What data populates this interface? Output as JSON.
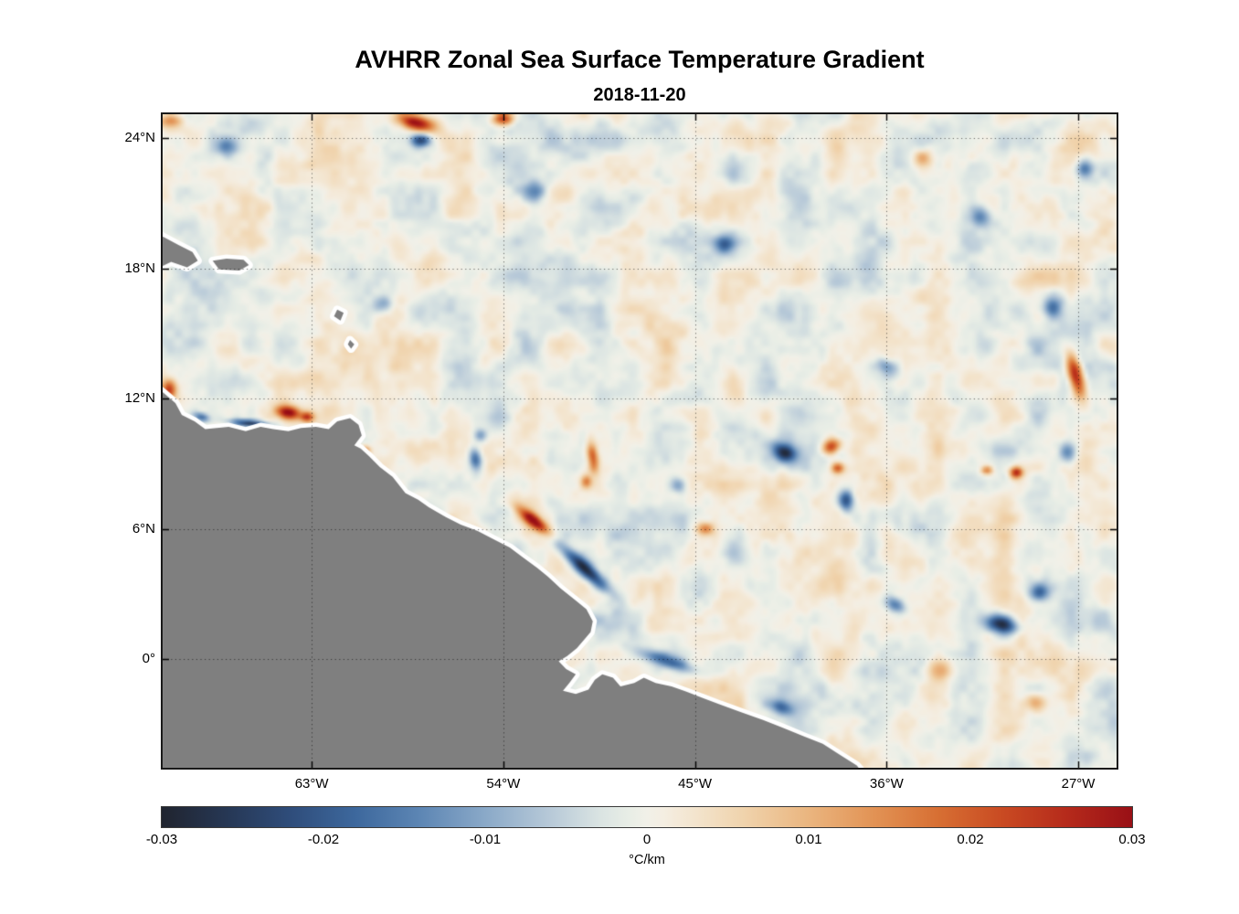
{
  "style": {
    "background": "#ffffff",
    "land_color": "#7f7f7f",
    "coast_halo": "#ffffff",
    "grid_color": "rgba(0,0,0,0.55)",
    "axis_color": "#000000",
    "text_color": "#000000",
    "box_color": "#1a1a1a"
  },
  "chart_data": {
    "type": "heatmap",
    "title": "AVHRR Zonal Sea Surface Temperature Gradient",
    "subtitle": "2018-11-20",
    "date": "2018-11-20",
    "xlabel": "",
    "ylabel": "",
    "grid": {
      "show": true,
      "line_style": "dotted"
    },
    "legend": "none",
    "extent": {
      "lon": [
        -70.0,
        -25.2
      ],
      "lat": [
        -5.0,
        25.1
      ]
    },
    "x_ticks": [
      {
        "label": "63°W",
        "value": -63
      },
      {
        "label": "54°W",
        "value": -54
      },
      {
        "label": "45°W",
        "value": -45
      },
      {
        "label": "36°W",
        "value": -36
      },
      {
        "label": "27°W",
        "value": -27
      }
    ],
    "y_ticks": [
      {
        "label": "24°N",
        "value": 24
      },
      {
        "label": "18°N",
        "value": 18
      },
      {
        "label": "12°N",
        "value": 12
      },
      {
        "label": "6°N",
        "value": 6
      },
      {
        "label": "0°",
        "value": 0
      }
    ],
    "colorbar": {
      "units": "°C/km",
      "min": -0.03,
      "max": 0.03,
      "orientation": "horizontal",
      "ticks": [
        {
          "label": "-0.03",
          "value": -0.03
        },
        {
          "label": "-0.02",
          "value": -0.02
        },
        {
          "label": "-0.01",
          "value": -0.01
        },
        {
          "label": "0",
          "value": 0
        },
        {
          "label": "0.01",
          "value": 0.01
        },
        {
          "label": "0.02",
          "value": 0.02
        },
        {
          "label": "0.03",
          "value": 0.03
        }
      ],
      "stops": [
        {
          "v": -0.03,
          "c": "#20242f"
        },
        {
          "v": -0.026,
          "c": "#263754"
        },
        {
          "v": -0.022,
          "c": "#2f4d7b"
        },
        {
          "v": -0.018,
          "c": "#3d689d"
        },
        {
          "v": -0.014,
          "c": "#5d86b4"
        },
        {
          "v": -0.01,
          "c": "#8aa9c8"
        },
        {
          "v": -0.006,
          "c": "#b7c9d8"
        },
        {
          "v": -0.003,
          "c": "#d9e3e2"
        },
        {
          "v": -0.001,
          "c": "#e9eee6"
        },
        {
          "v": 0.0,
          "c": "#f1f0e8"
        },
        {
          "v": 0.001,
          "c": "#f4eee2"
        },
        {
          "v": 0.003,
          "c": "#f3e4cd"
        },
        {
          "v": 0.006,
          "c": "#f0d3ac"
        },
        {
          "v": 0.01,
          "c": "#eab57f"
        },
        {
          "v": 0.014,
          "c": "#e29355"
        },
        {
          "v": 0.018,
          "c": "#d76f33"
        },
        {
          "v": 0.022,
          "c": "#c94a22"
        },
        {
          "v": 0.026,
          "c": "#b52a1b"
        },
        {
          "v": 0.03,
          "c": "#991016"
        }
      ]
    },
    "field_description": "Mostly near-zero (pale) zonal SST gradient with scattered positive (orange/red) and negative (blue) mesoscale anomalies over the tropical western Atlantic; gray land mask of northeastern South America and Caribbean islands.",
    "background_noise": {
      "seed": 11,
      "wavelength_deg": 1.6,
      "amplitude": 0.0085,
      "octaves": 3
    },
    "features": [
      {
        "lon": -58.1,
        "lat": 24.7,
        "v": 0.03,
        "rx": 0.85,
        "ry": 0.35,
        "rot": -15
      },
      {
        "lon": -57.9,
        "lat": 23.9,
        "v": -0.024,
        "rx": 0.45,
        "ry": 0.3,
        "rot": 0
      },
      {
        "lon": -54.0,
        "lat": 24.9,
        "v": 0.026,
        "rx": 0.5,
        "ry": 0.3,
        "rot": 0
      },
      {
        "lon": -69.6,
        "lat": 24.8,
        "v": 0.014,
        "rx": 0.55,
        "ry": 0.3,
        "rot": 0
      },
      {
        "lon": -67.0,
        "lat": 23.6,
        "v": -0.012,
        "rx": 0.45,
        "ry": 0.35,
        "rot": 0
      },
      {
        "lon": -69.7,
        "lat": 12.4,
        "v": 0.022,
        "rx": 0.35,
        "ry": 0.45,
        "rot": 0
      },
      {
        "lon": -64.1,
        "lat": 11.35,
        "v": 0.03,
        "rx": 0.55,
        "ry": 0.3,
        "rot": -10
      },
      {
        "lon": -63.2,
        "lat": 11.15,
        "v": 0.022,
        "rx": 0.3,
        "ry": 0.22,
        "rot": 0
      },
      {
        "lon": -65.9,
        "lat": 10.85,
        "v": -0.026,
        "rx": 0.9,
        "ry": 0.18,
        "rot": -5
      },
      {
        "lon": -68.2,
        "lat": 11.15,
        "v": -0.015,
        "rx": 0.4,
        "ry": 0.2,
        "rot": -15
      },
      {
        "lon": -60.5,
        "lat": 9.6,
        "v": 0.018,
        "rx": 0.28,
        "ry": 0.24,
        "rot": 0
      },
      {
        "lon": -55.3,
        "lat": 9.2,
        "v": -0.019,
        "rx": 0.3,
        "ry": 0.55,
        "rot": 10
      },
      {
        "lon": -55.1,
        "lat": 10.3,
        "v": -0.012,
        "rx": 0.3,
        "ry": 0.3,
        "rot": 0
      },
      {
        "lon": -49.8,
        "lat": 9.3,
        "v": 0.021,
        "rx": 0.25,
        "ry": 0.7,
        "rot": 8
      },
      {
        "lon": -50.1,
        "lat": 8.2,
        "v": 0.015,
        "rx": 0.25,
        "ry": 0.3,
        "rot": 0
      },
      {
        "lon": -52.6,
        "lat": 6.4,
        "v": 0.03,
        "rx": 0.85,
        "ry": 0.28,
        "rot": -38
      },
      {
        "lon": -50.2,
        "lat": 4.2,
        "v": -0.028,
        "rx": 1.5,
        "ry": 0.33,
        "rot": -42
      },
      {
        "lon": -46.3,
        "lat": -0.1,
        "v": -0.016,
        "rx": 1.3,
        "ry": 0.3,
        "rot": -18
      },
      {
        "lon": -40.8,
        "lat": 9.5,
        "v": -0.026,
        "rx": 0.55,
        "ry": 0.4,
        "rot": -30
      },
      {
        "lon": -38.6,
        "lat": 9.8,
        "v": 0.027,
        "rx": 0.45,
        "ry": 0.35,
        "rot": 20
      },
      {
        "lon": -38.3,
        "lat": 8.8,
        "v": 0.02,
        "rx": 0.3,
        "ry": 0.25,
        "rot": 0
      },
      {
        "lon": -37.9,
        "lat": 7.3,
        "v": -0.022,
        "rx": 0.35,
        "ry": 0.45,
        "rot": 0
      },
      {
        "lon": -27.1,
        "lat": 13.0,
        "v": 0.031,
        "rx": 0.35,
        "ry": 1.0,
        "rot": 15
      },
      {
        "lon": -29.9,
        "lat": 8.6,
        "v": 0.026,
        "rx": 0.3,
        "ry": 0.25,
        "rot": 0
      },
      {
        "lon": -31.3,
        "lat": 8.7,
        "v": 0.016,
        "rx": 0.3,
        "ry": 0.2,
        "rot": 0
      },
      {
        "lon": -30.6,
        "lat": 1.6,
        "v": -0.026,
        "rx": 0.7,
        "ry": 0.4,
        "rot": -10
      },
      {
        "lon": -28.8,
        "lat": 3.1,
        "v": -0.016,
        "rx": 0.45,
        "ry": 0.4,
        "rot": 0
      },
      {
        "lon": -26.7,
        "lat": 22.6,
        "v": -0.018,
        "rx": 0.4,
        "ry": 0.45,
        "rot": 0
      },
      {
        "lon": -43.6,
        "lat": 19.1,
        "v": -0.016,
        "rx": 0.5,
        "ry": 0.4,
        "rot": 0
      },
      {
        "lon": -31.6,
        "lat": 20.4,
        "v": -0.014,
        "rx": 0.5,
        "ry": 0.45,
        "rot": 0
      },
      {
        "lon": -34.3,
        "lat": 23.1,
        "v": 0.012,
        "rx": 0.5,
        "ry": 0.4,
        "rot": 0
      },
      {
        "lon": -52.5,
        "lat": 21.5,
        "v": -0.012,
        "rx": 0.55,
        "ry": 0.5,
        "rot": 0
      },
      {
        "lon": -59.6,
        "lat": 16.3,
        "v": -0.012,
        "rx": 0.5,
        "ry": 0.4,
        "rot": 0
      },
      {
        "lon": -45.8,
        "lat": 8.0,
        "v": -0.014,
        "rx": 0.4,
        "ry": 0.35,
        "rot": 0
      },
      {
        "lon": -44.5,
        "lat": 6.0,
        "v": 0.014,
        "rx": 0.4,
        "ry": 0.3,
        "rot": 0
      },
      {
        "lon": -36.0,
        "lat": 13.5,
        "v": -0.014,
        "rx": 0.5,
        "ry": 0.35,
        "rot": -20
      },
      {
        "lon": -28.2,
        "lat": 16.2,
        "v": -0.016,
        "rx": 0.45,
        "ry": 0.5,
        "rot": 0
      },
      {
        "lon": -27.5,
        "lat": 9.5,
        "v": -0.014,
        "rx": 0.4,
        "ry": 0.5,
        "rot": 0
      },
      {
        "lon": -33.5,
        "lat": -0.5,
        "v": 0.014,
        "rx": 0.55,
        "ry": 0.5,
        "rot": 0
      },
      {
        "lon": -29.0,
        "lat": -2.0,
        "v": 0.012,
        "rx": 0.5,
        "ry": 0.4,
        "rot": 0
      },
      {
        "lon": -41.0,
        "lat": -2.2,
        "v": -0.014,
        "rx": 0.6,
        "ry": 0.3,
        "rot": -15
      },
      {
        "lon": -35.6,
        "lat": 2.5,
        "v": -0.018,
        "rx": 0.55,
        "ry": 0.35,
        "rot": -25
      }
    ],
    "land_polygons": [
      [
        [
          -70.25,
          12.5
        ],
        [
          -70.0,
          12.3
        ],
        [
          -69.4,
          11.8
        ],
        [
          -69.1,
          11.25
        ],
        [
          -68.5,
          10.95
        ],
        [
          -68.0,
          10.6
        ],
        [
          -66.9,
          10.7
        ],
        [
          -66.1,
          10.5
        ],
        [
          -65.4,
          10.7
        ],
        [
          -64.8,
          10.6
        ],
        [
          -64.1,
          10.5
        ],
        [
          -63.5,
          10.65
        ],
        [
          -62.8,
          10.7
        ],
        [
          -62.2,
          10.6
        ],
        [
          -61.8,
          10.95
        ],
        [
          -61.2,
          11.1
        ],
        [
          -60.8,
          10.8
        ],
        [
          -60.65,
          10.3
        ],
        [
          -61.0,
          9.85
        ],
        [
          -60.7,
          9.7
        ],
        [
          -60.3,
          9.35
        ],
        [
          -59.8,
          8.85
        ],
        [
          -59.2,
          8.4
        ],
        [
          -58.6,
          7.65
        ],
        [
          -58.0,
          7.35
        ],
        [
          -57.5,
          7.0
        ],
        [
          -56.7,
          6.55
        ],
        [
          -56.0,
          6.2
        ],
        [
          -55.2,
          5.9
        ],
        [
          -54.5,
          5.55
        ],
        [
          -53.7,
          5.15
        ],
        [
          -53.1,
          4.7
        ],
        [
          -52.4,
          4.2
        ],
        [
          -51.9,
          3.8
        ],
        [
          -51.3,
          3.25
        ],
        [
          -50.6,
          2.7
        ],
        [
          -50.1,
          2.3
        ],
        [
          -49.8,
          1.75
        ],
        [
          -49.9,
          1.25
        ],
        [
          -50.2,
          0.9
        ],
        [
          -50.55,
          0.5
        ],
        [
          -51.0,
          0.15
        ],
        [
          -51.4,
          -0.1
        ],
        [
          -51.05,
          -0.45
        ],
        [
          -50.6,
          -0.7
        ],
        [
          -50.9,
          -1.1
        ],
        [
          -51.2,
          -1.45
        ],
        [
          -50.6,
          -1.6
        ],
        [
          -50.0,
          -1.4
        ],
        [
          -49.7,
          -0.95
        ],
        [
          -49.35,
          -0.7
        ],
        [
          -48.85,
          -0.85
        ],
        [
          -48.5,
          -1.25
        ],
        [
          -47.85,
          -1.1
        ],
        [
          -47.4,
          -0.85
        ],
        [
          -46.85,
          -1.1
        ],
        [
          -46.1,
          -1.25
        ],
        [
          -45.4,
          -1.5
        ],
        [
          -44.6,
          -1.8
        ],
        [
          -43.8,
          -2.1
        ],
        [
          -42.8,
          -2.45
        ],
        [
          -41.8,
          -2.8
        ],
        [
          -40.9,
          -3.15
        ],
        [
          -39.9,
          -3.55
        ],
        [
          -39.0,
          -3.9
        ],
        [
          -38.2,
          -4.4
        ],
        [
          -37.4,
          -4.9
        ],
        [
          -37.0,
          -5.35
        ],
        [
          -70.25,
          -5.35
        ]
      ],
      [
        [
          -70.25,
          19.6
        ],
        [
          -69.3,
          19.1
        ],
        [
          -68.6,
          18.75
        ],
        [
          -68.35,
          18.35
        ],
        [
          -68.85,
          18.05
        ],
        [
          -69.6,
          18.3
        ],
        [
          -70.25,
          18.0
        ]
      ],
      [
        [
          -67.65,
          18.35
        ],
        [
          -67.0,
          18.45
        ],
        [
          -66.2,
          18.4
        ],
        [
          -65.95,
          18.15
        ],
        [
          -66.4,
          17.9
        ],
        [
          -67.35,
          17.95
        ]
      ],
      [
        [
          -61.8,
          16.1
        ],
        [
          -61.5,
          15.95
        ],
        [
          -61.65,
          15.6
        ],
        [
          -61.95,
          15.8
        ]
      ],
      [
        [
          -61.2,
          14.7
        ],
        [
          -61.0,
          14.5
        ],
        [
          -61.15,
          14.3
        ],
        [
          -61.3,
          14.5
        ]
      ]
    ]
  }
}
